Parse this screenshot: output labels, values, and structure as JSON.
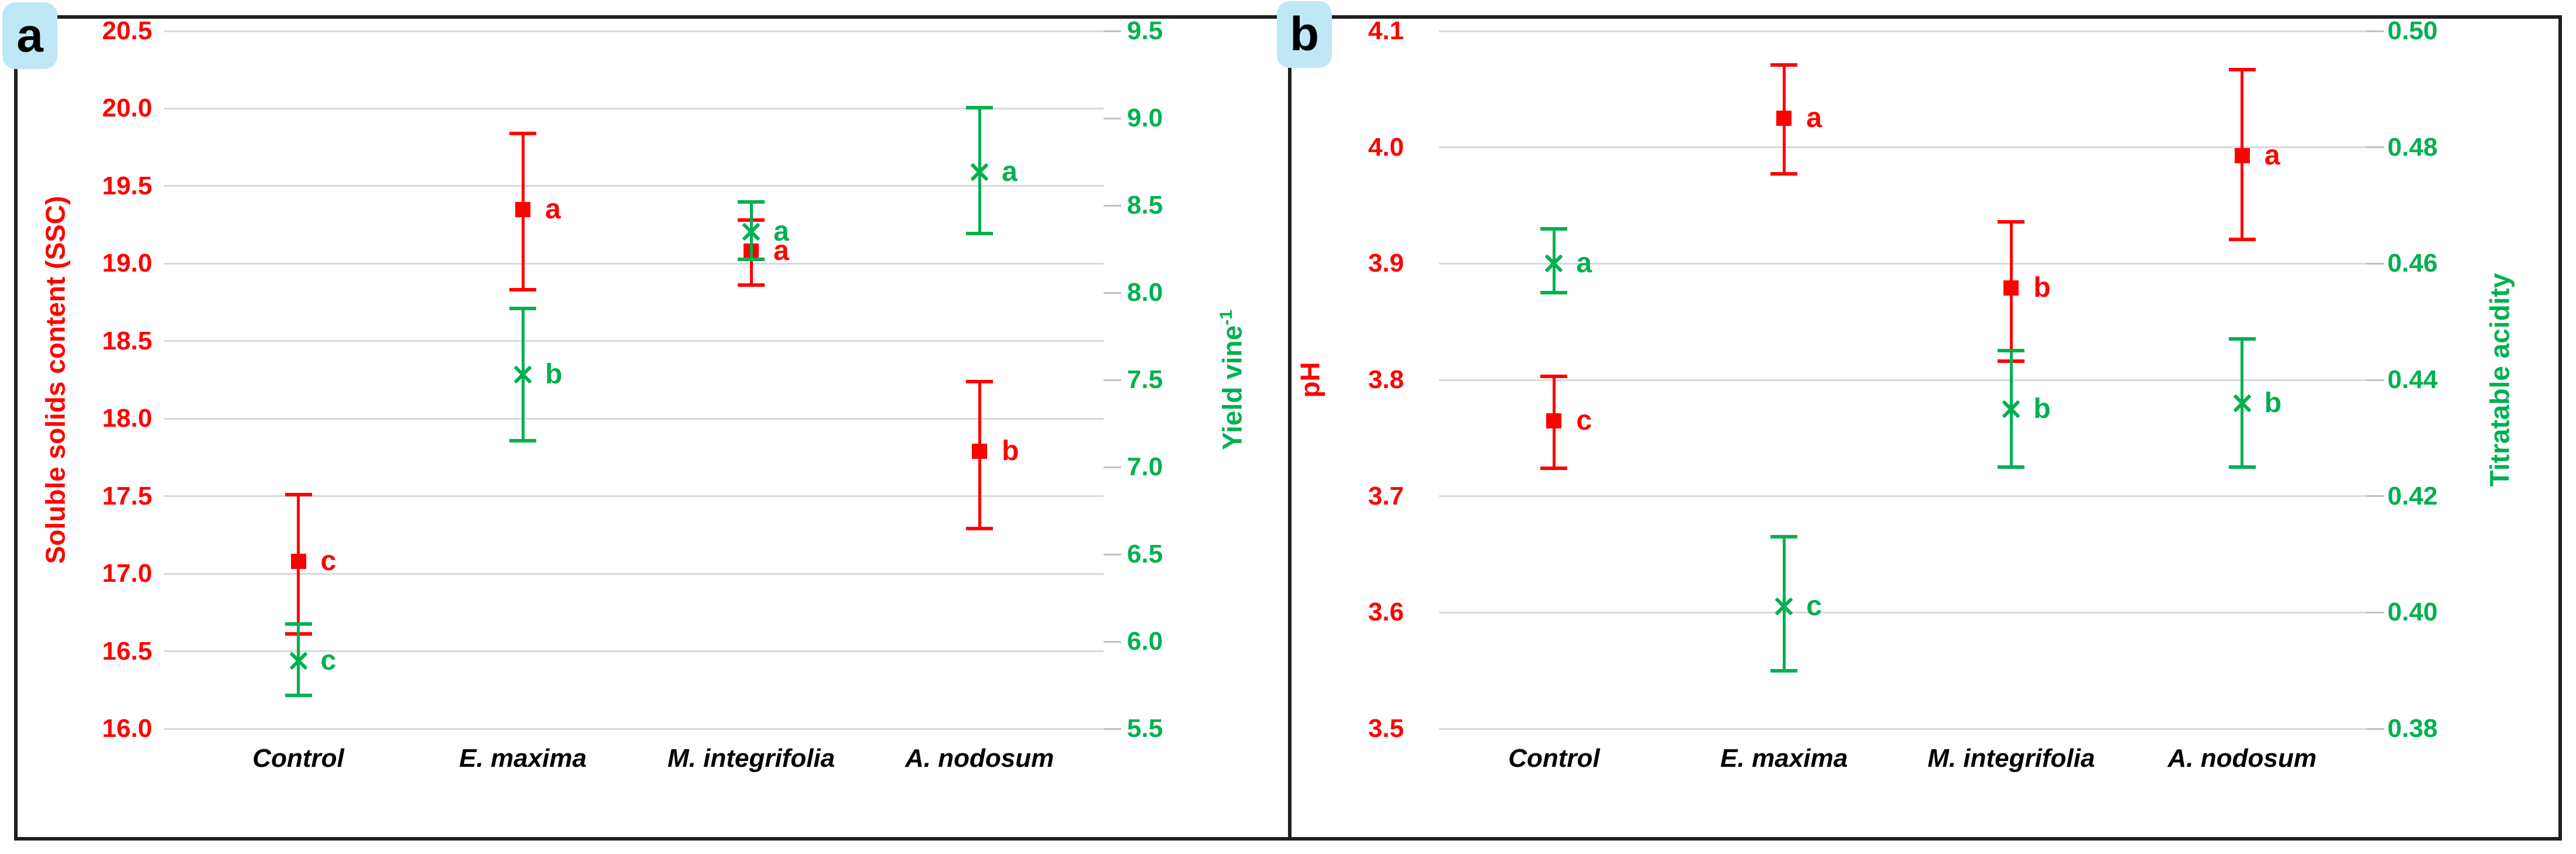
{
  "figure": {
    "red": "#ff0000",
    "green": "#00b050",
    "grid_color": "#d9d9d9",
    "frame_color": "#1f1f1f",
    "badge_bg": "#bfe7f6",
    "text_color": "#000000"
  },
  "chart_data": [
    {
      "id": "a",
      "type": "scatter",
      "badge": "a",
      "categories": [
        "Control",
        "E. maxima",
        "M. integrifolia",
        "A. nodosum"
      ],
      "left_axis": {
        "title_main": "Soluble solids content (SSC)",
        "color": "#ff0000",
        "min": 16.0,
        "max": 20.5,
        "ticks": [
          "20.5",
          "20.0",
          "19.5",
          "19.0",
          "18.5",
          "18.0",
          "17.5",
          "17.0",
          "16.5",
          "16.0"
        ]
      },
      "right_axis": {
        "title_main": "Yield vine",
        "title_sup": "-1",
        "color": "#00b050",
        "min": 5.5,
        "max": 9.5,
        "ticks": [
          "9.5",
          "9.0",
          "8.5",
          "8.0",
          "7.5",
          "7.0",
          "6.5",
          "6.0",
          "5.5"
        ]
      },
      "series": [
        {
          "name": "Soluble solids content (SSC)",
          "axis": "left",
          "marker": "square",
          "color": "#ff0000",
          "points": [
            {
              "category": "Control",
              "value": 17.08,
              "lo": 16.61,
              "hi": 17.51,
              "letter": "c"
            },
            {
              "category": "E. maxima",
              "value": 19.35,
              "lo": 18.83,
              "hi": 19.84,
              "letter": "a"
            },
            {
              "category": "M. integrifolia",
              "value": 19.08,
              "lo": 18.86,
              "hi": 19.28,
              "letter": "a"
            },
            {
              "category": "A. nodosum",
              "value": 17.79,
              "lo": 17.29,
              "hi": 18.24,
              "letter": "b"
            }
          ]
        },
        {
          "name": "Yield vine-1",
          "axis": "right",
          "marker": "x",
          "color": "#00b050",
          "points": [
            {
              "category": "Control",
              "value": 5.89,
              "lo": 5.69,
              "hi": 6.1,
              "letter": "c"
            },
            {
              "category": "E. maxima",
              "value": 7.53,
              "lo": 7.15,
              "hi": 7.91,
              "letter": "b"
            },
            {
              "category": "M. integrifolia",
              "value": 8.35,
              "lo": 8.19,
              "hi": 8.52,
              "letter": "a"
            },
            {
              "category": "A. nodosum",
              "value": 8.69,
              "lo": 8.34,
              "hi": 9.06,
              "letter": "a"
            }
          ]
        }
      ]
    },
    {
      "id": "b",
      "type": "scatter",
      "badge": "b",
      "categories": [
        "Control",
        "E. maxima",
        "M. integrifolia",
        "A. nodosum"
      ],
      "left_axis": {
        "title_main": "pH",
        "color": "#ff0000",
        "min": 3.5,
        "max": 4.1,
        "ticks": [
          "4.1",
          "4.0",
          "3.9",
          "3.8",
          "3.7",
          "3.6",
          "3.5"
        ]
      },
      "right_axis": {
        "title_main": "Titratable acidity",
        "color": "#00b050",
        "min": 0.38,
        "max": 0.5,
        "ticks": [
          "0.50",
          "0.48",
          "0.46",
          "0.44",
          "0.42",
          "0.40",
          "0.38"
        ]
      },
      "series": [
        {
          "name": "pH",
          "axis": "left",
          "marker": "square",
          "color": "#ff0000",
          "points": [
            {
              "category": "Control",
              "value": 3.765,
              "lo": 3.724,
              "hi": 3.803,
              "letter": "c"
            },
            {
              "category": "E. maxima",
              "value": 4.025,
              "lo": 3.977,
              "hi": 4.071,
              "letter": "a"
            },
            {
              "category": "M. integrifolia",
              "value": 3.879,
              "lo": 3.816,
              "hi": 3.936,
              "letter": "b"
            },
            {
              "category": "A. nodosum",
              "value": 3.993,
              "lo": 3.921,
              "hi": 4.067,
              "letter": "a"
            }
          ]
        },
        {
          "name": "Titratable acidity",
          "axis": "right",
          "marker": "x",
          "color": "#00b050",
          "points": [
            {
              "category": "Control",
              "value": 0.46,
              "lo": 0.455,
              "hi": 0.466,
              "letter": "a"
            },
            {
              "category": "E. maxima",
              "value": 0.401,
              "lo": 0.39,
              "hi": 0.413,
              "letter": "c"
            },
            {
              "category": "M. integrifolia",
              "value": 0.435,
              "lo": 0.425,
              "hi": 0.445,
              "letter": "b"
            },
            {
              "category": "A. nodosum",
              "value": 0.436,
              "lo": 0.425,
              "hi": 0.447,
              "letter": "b"
            }
          ]
        }
      ]
    }
  ]
}
